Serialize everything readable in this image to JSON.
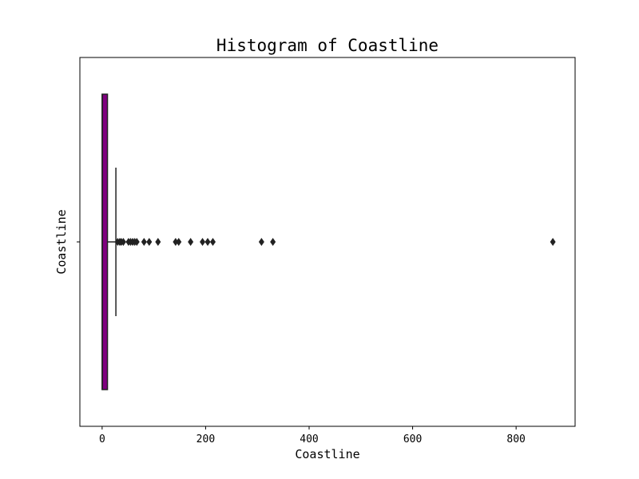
{
  "chart_data": {
    "type": "boxplot",
    "title": "Histogram of Coastline",
    "xlabel": "Coastline",
    "ylabel": "Coastline",
    "orientation": "horizontal",
    "xlim": [
      -43,
      914
    ],
    "xticks": [
      0,
      200,
      400,
      600,
      800
    ],
    "box_color": "#800080",
    "line_color": "#222222",
    "stats": {
      "min": 0,
      "q1": 0,
      "median": 0.41,
      "q3": 10.3,
      "whisker_high": 26.6
    },
    "outliers": [
      30,
      34,
      37,
      41,
      51,
      55,
      59,
      63,
      67,
      81,
      91,
      108,
      142,
      148,
      171,
      194,
      204,
      214,
      308,
      330,
      871
    ]
  }
}
